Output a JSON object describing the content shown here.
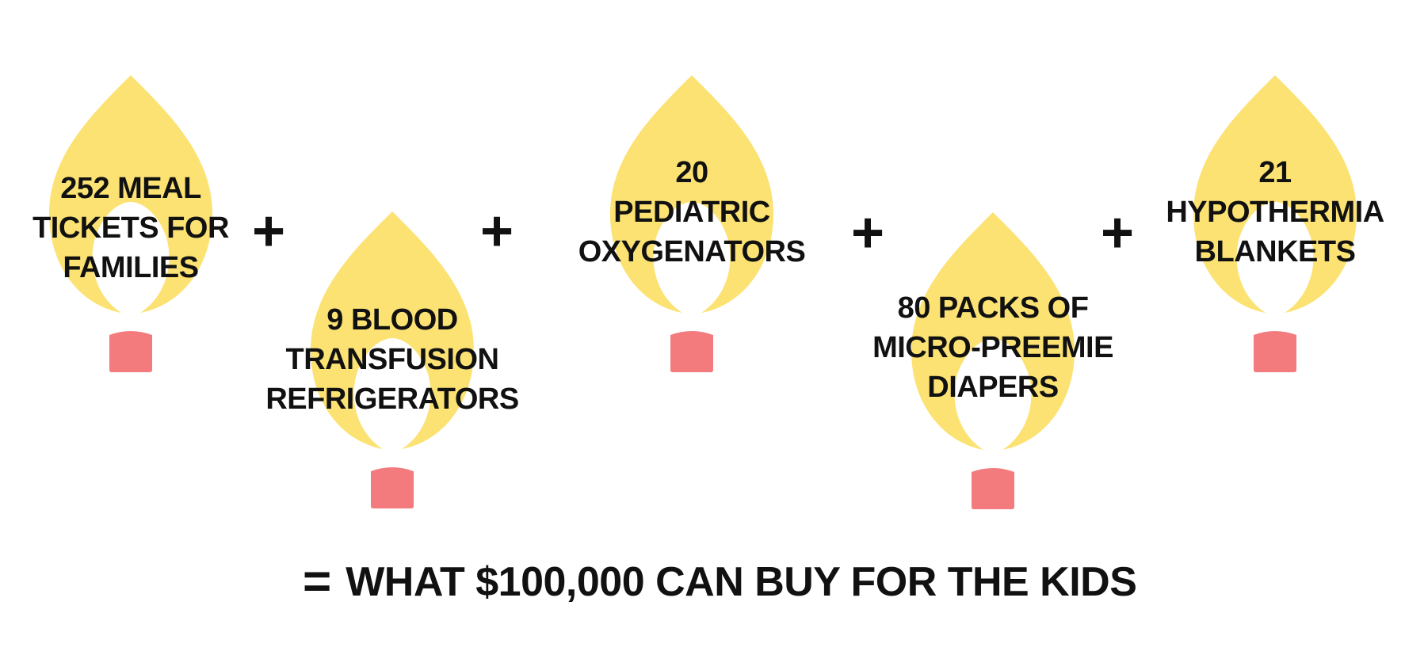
{
  "colors": {
    "flame": "#FCE273",
    "flame_base": "#F47B7D",
    "text": "#111111",
    "background": "#FFFFFF"
  },
  "flames": [
    {
      "icon": "flame-icon",
      "label_lines": [
        "252 MEAL",
        "TICKETS FOR",
        "FAMILIES"
      ]
    },
    {
      "icon": "flame-icon",
      "label_lines": [
        "9 BLOOD",
        "TRANSFUSION",
        "REFRIGERATORS"
      ]
    },
    {
      "icon": "flame-icon",
      "label_lines": [
        "20",
        "PEDIATRIC",
        "OXYGENATORS"
      ]
    },
    {
      "icon": "flame-icon",
      "label_lines": [
        "80 PACKS OF",
        "MICRO-PREEMIE",
        "DIAPERS"
      ]
    },
    {
      "icon": "flame-icon",
      "label_lines": [
        "21",
        "HYPOTHERMIA",
        "BLANKETS"
      ]
    }
  ],
  "operators": {
    "plus": "+",
    "equals": "="
  },
  "result": {
    "text": "WHAT $100,000 CAN BUY FOR THE KIDS"
  }
}
